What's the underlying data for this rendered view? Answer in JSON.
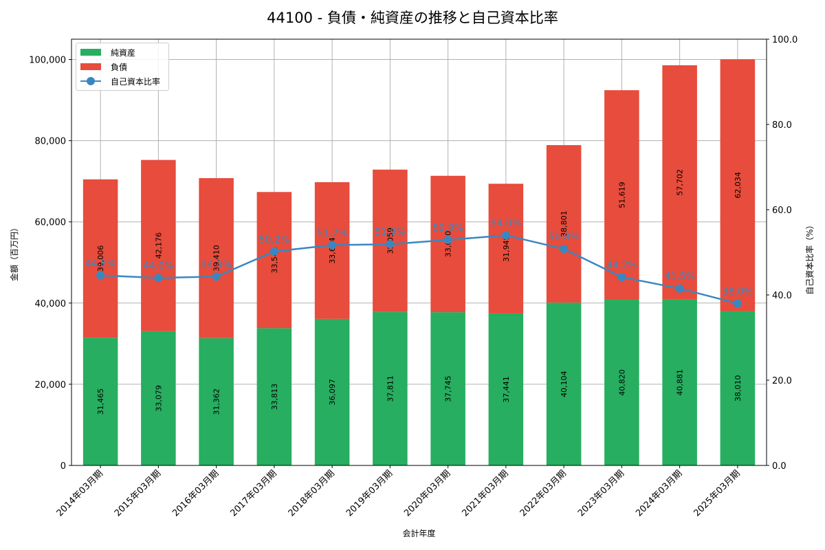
{
  "chart_data": {
    "type": "bar",
    "title": "44100 - 負債・純資産の推移と自己資本比率",
    "xlabel": "会計年度",
    "ylabel": "金額（百万円）",
    "y2label": "自己資本比率（%）",
    "ylim": [
      0,
      105000
    ],
    "y2lim": [
      0,
      100
    ],
    "yticks": [
      "0",
      "20,000",
      "40,000",
      "60,000",
      "80,000",
      "100,000"
    ],
    "y2ticks": [
      "0.0",
      "20.0",
      "40.0",
      "60.0",
      "80.0",
      "100.0"
    ],
    "grid": true,
    "legend_position": "upper left",
    "categories": [
      "2014年03月期",
      "2015年03月期",
      "2016年03月期",
      "2017年03月期",
      "2018年03月期",
      "2019年03月期",
      "2020年03月期",
      "2021年03月期",
      "2022年03月期",
      "2023年03月期",
      "2024年03月期",
      "2025年03月期"
    ],
    "series": [
      {
        "name": "純資産",
        "type": "bar",
        "stack": "total",
        "color": "#27ae60",
        "values": [
          31465,
          33079,
          31362,
          33813,
          36097,
          37811,
          37745,
          37441,
          40104,
          40820,
          40881,
          38010
        ],
        "labels": [
          "31,465",
          "33,079",
          "31,362",
          "33,813",
          "36,097",
          "37,811",
          "37,745",
          "37,441",
          "40,104",
          "40,820",
          "40,881",
          "38,010"
        ]
      },
      {
        "name": "負債",
        "type": "bar",
        "stack": "total",
        "color": "#e74c3c",
        "values": [
          39006,
          42176,
          39410,
          33544,
          33674,
          35059,
          33600,
          31949,
          38801,
          51619,
          57702,
          62034
        ],
        "labels": [
          "39,006",
          "42,176",
          "39,410",
          "33,544",
          "33,674",
          "35,059",
          "33,600",
          "31,949",
          "38,801",
          "51,619",
          "57,702",
          "62,034"
        ]
      },
      {
        "name": "自己資本比率",
        "type": "line",
        "axis": "right",
        "color": "#3a87c0",
        "values": [
          44.6,
          44.0,
          44.3,
          50.2,
          51.7,
          51.9,
          52.9,
          54.0,
          50.8,
          44.2,
          41.5,
          38.0
        ],
        "labels": [
          "44.6%",
          "44.0%",
          "44.3%",
          "50.2%",
          "51.7%",
          "51.9%",
          "52.9%",
          "54.0%",
          "50.8%",
          "44.2%",
          "41.5%",
          "38.0%"
        ]
      }
    ]
  }
}
